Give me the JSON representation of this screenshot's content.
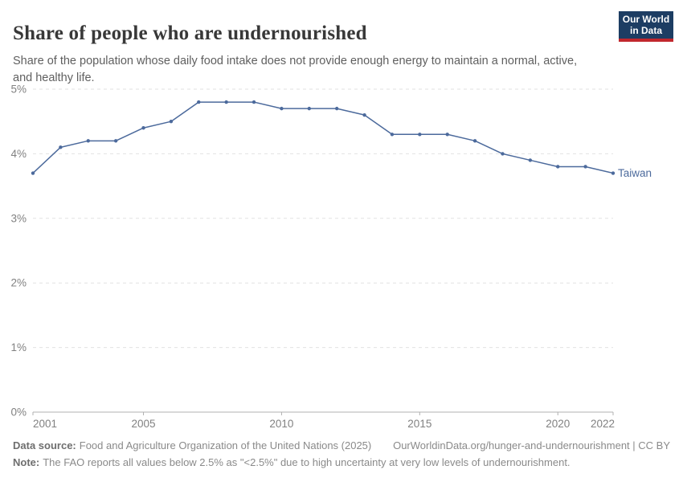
{
  "header": {
    "title": "Share of people who are undernourished",
    "subtitle": "Share of the population whose daily food intake does not provide enough energy to maintain a normal, active, and healthy life.",
    "logo": {
      "line1": "Our World",
      "line2": "in Data",
      "bg_color": "#1d3d63",
      "stripe_color": "#c1272d"
    }
  },
  "chart_data": {
    "type": "line",
    "title": "Share of people who are undernourished",
    "xlabel": "",
    "ylabel": "",
    "x": [
      2001,
      2002,
      2003,
      2004,
      2005,
      2006,
      2007,
      2008,
      2009,
      2010,
      2011,
      2012,
      2013,
      2014,
      2015,
      2016,
      2017,
      2018,
      2019,
      2020,
      2021,
      2022
    ],
    "series": [
      {
        "name": "Taiwan",
        "color": "#4C6A9C",
        "values": [
          3.7,
          4.1,
          4.2,
          4.2,
          4.4,
          4.5,
          4.8,
          4.8,
          4.8,
          4.7,
          4.7,
          4.7,
          4.6,
          4.3,
          4.3,
          4.3,
          4.2,
          4.0,
          3.9,
          3.8,
          3.8,
          3.7
        ]
      }
    ],
    "ylim": [
      0,
      5
    ],
    "yticks": [
      "0%",
      "1%",
      "2%",
      "3%",
      "4%",
      "5%"
    ],
    "xticks": [
      2001,
      2005,
      2010,
      2015,
      2020,
      2022
    ],
    "grid": "horizontal-dashed",
    "legend": "end-of-line-label",
    "colors": {
      "grid": "#e2e2e2",
      "axis": "#b0b0b0",
      "tick_text": "#818181"
    }
  },
  "footer": {
    "datasource_label": "Data source:",
    "datasource_text": "Food and Agriculture Organization of the United Nations (2025)",
    "license_text": "OurWorldinData.org/hunger-and-undernourishment | CC BY",
    "note_label": "Note:",
    "note_text": "The FAO reports all values below 2.5% as \"<2.5%\" due to high uncertainty at very low levels of undernourishment."
  }
}
